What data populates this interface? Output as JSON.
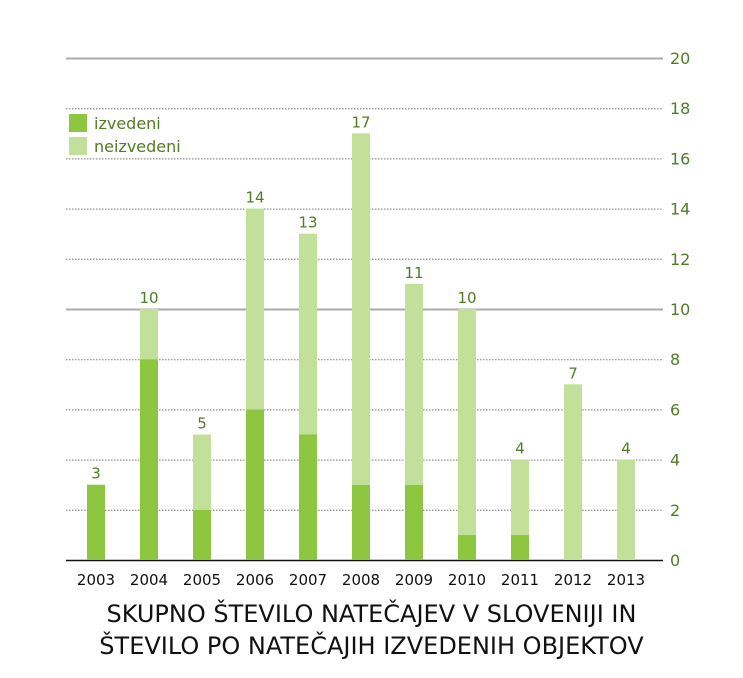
{
  "chart_data": {
    "type": "bar",
    "stacked": true,
    "title": "SKUPNO ŠTEVILO NATEČAJEV V SLOVENIJI IN ŠTEVILO PO NATEČAJIH IZVEDENIH OBJEKTOV",
    "title_lines": [
      "SKUPNO ŠTEVILO NATEČAJEV V SLOVENIJI IN",
      "ŠTEVILO PO NATEČAJIH IZVEDENIH OBJEKTOV"
    ],
    "categories": [
      "2003",
      "2004",
      "2005",
      "2006",
      "2007",
      "2008",
      "2009",
      "2010",
      "2011",
      "2012",
      "2013"
    ],
    "series": [
      {
        "name": "izvedeni",
        "color": "#8dc63f",
        "values": [
          3,
          8,
          2,
          6,
          5,
          3,
          3,
          1,
          1,
          0,
          0
        ]
      },
      {
        "name": "neizvedeni",
        "color": "#c3e09b",
        "values": [
          0,
          2,
          3,
          8,
          8,
          14,
          8,
          9,
          3,
          7,
          4
        ]
      }
    ],
    "totals": [
      3,
      10,
      5,
      14,
      13,
      17,
      11,
      10,
      4,
      7,
      4
    ],
    "ylim": [
      0,
      20
    ],
    "yticks": [
      0,
      2,
      4,
      6,
      8,
      10,
      12,
      14,
      16,
      18,
      20
    ],
    "y_axis_side": "right",
    "grid": true,
    "legend_position": "top-left",
    "text_color": "#4f7d23"
  }
}
